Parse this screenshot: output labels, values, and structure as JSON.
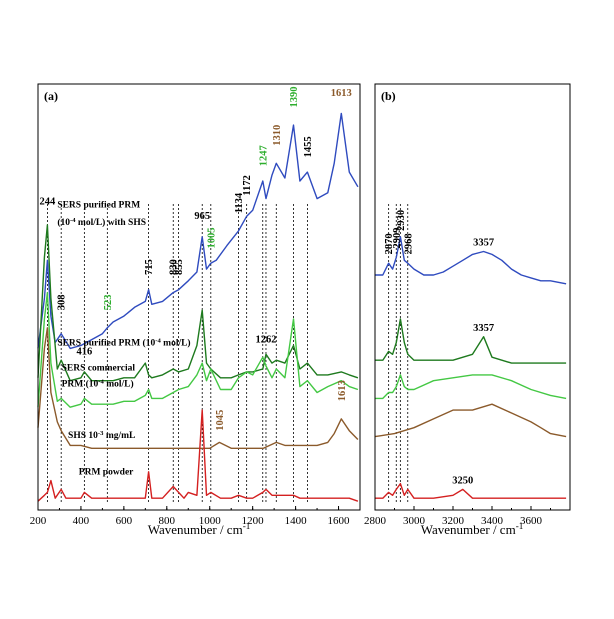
{
  "chart_data": [
    {
      "panel": "(a)",
      "type": "line",
      "xlabel": "Wavenumber / cm⁻¹",
      "xlim": [
        200,
        1700
      ],
      "xticks": [
        200,
        400,
        600,
        800,
        1000,
        1200,
        1400,
        1600
      ],
      "series": [
        {
          "key": "sers_purified_shs",
          "color": "#2f4bbf",
          "x": [
            200,
            230,
            244,
            260,
            280,
            308,
            350,
            400,
            450,
            500,
            523,
            550,
            600,
            650,
            700,
            715,
            730,
            780,
            830,
            855,
            900,
            940,
            965,
            985,
            1005,
            1030,
            1080,
            1134,
            1172,
            1200,
            1247,
            1262,
            1290,
            1310,
            1350,
            1390,
            1420,
            1455,
            1500,
            1550,
            1580,
            1613,
            1650,
            1690
          ],
          "y": [
            0.55,
            0.72,
            0.85,
            0.66,
            0.57,
            0.6,
            0.55,
            0.56,
            0.58,
            0.6,
            0.62,
            0.64,
            0.66,
            0.69,
            0.71,
            0.75,
            0.7,
            0.71,
            0.74,
            0.75,
            0.78,
            0.81,
            0.93,
            0.82,
            0.84,
            0.85,
            0.9,
            0.95,
            1.0,
            1.02,
            1.12,
            1.06,
            1.14,
            1.18,
            1.13,
            1.31,
            1.12,
            1.15,
            1.06,
            1.08,
            1.18,
            1.35,
            1.15,
            1.1
          ]
        },
        {
          "key": "sers_purified",
          "color": "#1e7a1e",
          "x": [
            200,
            230,
            244,
            260,
            290,
            308,
            350,
            400,
            416,
            450,
            500,
            550,
            600,
            650,
            700,
            715,
            730,
            780,
            830,
            855,
            900,
            940,
            965,
            985,
            1005,
            1050,
            1100,
            1134,
            1172,
            1200,
            1247,
            1262,
            1290,
            1310,
            1350,
            1390,
            1420,
            1455,
            1500,
            1550,
            1613,
            1650,
            1690
          ],
          "y": [
            0.45,
            0.86,
            0.97,
            0.72,
            0.48,
            0.51,
            0.44,
            0.45,
            0.47,
            0.44,
            0.44,
            0.44,
            0.45,
            0.45,
            0.5,
            0.46,
            0.45,
            0.46,
            0.48,
            0.47,
            0.48,
            0.56,
            0.68,
            0.5,
            0.48,
            0.45,
            0.45,
            0.46,
            0.47,
            0.47,
            0.48,
            0.53,
            0.5,
            0.51,
            0.5,
            0.56,
            0.48,
            0.5,
            0.46,
            0.46,
            0.47,
            0.46,
            0.45
          ]
        },
        {
          "key": "sers_commercial",
          "color": "#44c844",
          "x": [
            200,
            230,
            244,
            260,
            290,
            308,
            350,
            400,
            416,
            450,
            500,
            550,
            600,
            650,
            700,
            715,
            730,
            780,
            830,
            855,
            900,
            940,
            965,
            985,
            1005,
            1050,
            1100,
            1134,
            1172,
            1200,
            1247,
            1262,
            1290,
            1310,
            1350,
            1390,
            1420,
            1455,
            1500,
            1550,
            1613,
            1650,
            1690
          ],
          "y": [
            0.35,
            0.65,
            0.74,
            0.5,
            0.37,
            0.38,
            0.35,
            0.36,
            0.38,
            0.36,
            0.36,
            0.36,
            0.37,
            0.37,
            0.39,
            0.41,
            0.38,
            0.38,
            0.4,
            0.41,
            0.42,
            0.46,
            0.5,
            0.44,
            0.48,
            0.41,
            0.41,
            0.45,
            0.47,
            0.46,
            0.52,
            0.49,
            0.45,
            0.48,
            0.45,
            0.65,
            0.42,
            0.44,
            0.4,
            0.42,
            0.44,
            0.42,
            0.41
          ]
        },
        {
          "key": "shs",
          "color": "#8b5a2b",
          "x": [
            200,
            230,
            244,
            260,
            290,
            308,
            350,
            400,
            450,
            500,
            550,
            600,
            650,
            700,
            750,
            800,
            850,
            900,
            950,
            1000,
            1045,
            1100,
            1150,
            1200,
            1250,
            1310,
            1350,
            1400,
            1450,
            1500,
            1550,
            1580,
            1613,
            1650,
            1690
          ],
          "y": [
            0.28,
            0.55,
            0.62,
            0.4,
            0.3,
            0.27,
            0.22,
            0.22,
            0.21,
            0.21,
            0.21,
            0.21,
            0.21,
            0.21,
            0.21,
            0.21,
            0.21,
            0.21,
            0.21,
            0.21,
            0.23,
            0.21,
            0.21,
            0.21,
            0.21,
            0.23,
            0.22,
            0.22,
            0.22,
            0.22,
            0.23,
            0.26,
            0.31,
            0.27,
            0.24
          ]
        },
        {
          "key": "prm_powder",
          "color": "#d42020",
          "x": [
            200,
            230,
            244,
            260,
            280,
            308,
            330,
            400,
            416,
            450,
            500,
            600,
            650,
            700,
            715,
            730,
            780,
            830,
            855,
            880,
            900,
            940,
            965,
            985,
            1005,
            1050,
            1100,
            1134,
            1172,
            1200,
            1247,
            1262,
            1290,
            1310,
            1350,
            1390,
            1420,
            1455,
            1500,
            1550,
            1613,
            1650,
            1690
          ],
          "y": [
            0.03,
            0.05,
            0.06,
            0.1,
            0.04,
            0.07,
            0.04,
            0.04,
            0.06,
            0.04,
            0.04,
            0.04,
            0.04,
            0.04,
            0.13,
            0.04,
            0.04,
            0.08,
            0.06,
            0.04,
            0.06,
            0.05,
            0.34,
            0.05,
            0.06,
            0.04,
            0.04,
            0.05,
            0.04,
            0.04,
            0.06,
            0.07,
            0.05,
            0.05,
            0.05,
            0.05,
            0.04,
            0.04,
            0.04,
            0.04,
            0.04,
            0.04,
            0.03
          ]
        }
      ],
      "curve_labels": [
        {
          "text": "SERS  purified  PRM",
          "at": [
            290,
            1.03
          ]
        },
        {
          "text": "(10⁻⁴ mol/L) with SHS",
          "at": [
            290,
            0.97
          ]
        },
        {
          "text": "SERS purified PRM (10⁻⁴ mol/L)",
          "at": [
            290,
            0.56
          ]
        },
        {
          "text": "SERS commercial",
          "at": [
            310,
            0.475
          ]
        },
        {
          "text": "PRM (10⁻⁴ mol/L)",
          "at": [
            310,
            0.42
          ]
        },
        {
          "text": "SHS 10⁻³ mg/mL",
          "at": [
            340,
            0.245
          ]
        },
        {
          "text": "PRM powder",
          "at": [
            390,
            0.12
          ]
        }
      ],
      "peak_labels": [
        {
          "text": "244",
          "x": 244,
          "y": 1.04,
          "color": "#000000",
          "vertical": false
        },
        {
          "text": "308",
          "x": 308,
          "y": 0.68,
          "color": "#000000",
          "vertical": true
        },
        {
          "text": "523",
          "x": 523,
          "y": 0.68,
          "color": "#2eae2e",
          "vertical": true
        },
        {
          "text": "715",
          "x": 715,
          "y": 0.8,
          "color": "#000000",
          "vertical": true
        },
        {
          "text": "830",
          "x": 830,
          "y": 0.8,
          "color": "#000000",
          "vertical": true
        },
        {
          "text": "855",
          "x": 855,
          "y": 0.8,
          "color": "#000000",
          "vertical": true
        },
        {
          "text": "965",
          "x": 965,
          "y": 0.99,
          "color": "#000000",
          "vertical": false
        },
        {
          "text": "1005",
          "x": 1005,
          "y": 0.89,
          "color": "#2eae2e",
          "vertical": true
        },
        {
          "text": "1134",
          "x": 1134,
          "y": 1.01,
          "color": "#000000",
          "vertical": true
        },
        {
          "text": "1172",
          "x": 1172,
          "y": 1.07,
          "color": "#000000",
          "vertical": true
        },
        {
          "text": "1247",
          "x": 1247,
          "y": 1.17,
          "color": "#2eae2e",
          "vertical": true
        },
        {
          "text": "1310",
          "x": 1310,
          "y": 1.24,
          "color": "#8b5a2b",
          "vertical": true
        },
        {
          "text": "1390",
          "x": 1390,
          "y": 1.37,
          "color": "#2eae2e",
          "vertical": true
        },
        {
          "text": "1455",
          "x": 1455,
          "y": 1.2,
          "color": "#000000",
          "vertical": true
        },
        {
          "text": "1613",
          "x": 1613,
          "y": 1.41,
          "color": "#8b5a2b",
          "vertical": false
        },
        {
          "text": "416",
          "x": 416,
          "y": 0.53,
          "color": "#000000",
          "vertical": false
        },
        {
          "text": "1262",
          "x": 1262,
          "y": 0.57,
          "color": "#000000",
          "vertical": false
        },
        {
          "text": "1045",
          "x": 1045,
          "y": 0.27,
          "color": "#8b5a2b",
          "vertical": true
        },
        {
          "text": "1613",
          "x": 1613,
          "y": 0.37,
          "color": "#8b5a2b",
          "vertical": true
        }
      ],
      "dashed_lines": [
        244,
        308,
        416,
        523,
        715,
        830,
        855,
        965,
        1005,
        1134,
        1172,
        1247,
        1262,
        1310,
        1390,
        1455
      ]
    },
    {
      "panel": "(b)",
      "type": "line",
      "xlabel": "Wavenumber / cm⁻¹",
      "xlim": [
        2800,
        3800
      ],
      "xticks": [
        2800,
        3000,
        3200,
        3400,
        3600
      ],
      "series": [
        {
          "key": "sers_purified_shs",
          "color": "#2f4bbf",
          "x": [
            2800,
            2840,
            2870,
            2890,
            2909,
            2930,
            2950,
            2968,
            3000,
            3050,
            3100,
            3150,
            3200,
            3250,
            3300,
            3357,
            3400,
            3450,
            3500,
            3550,
            3600,
            3650,
            3700,
            3780
          ],
          "y": [
            0.8,
            0.8,
            0.84,
            0.82,
            0.86,
            0.93,
            0.85,
            0.84,
            0.82,
            0.8,
            0.8,
            0.81,
            0.83,
            0.85,
            0.87,
            0.88,
            0.87,
            0.85,
            0.82,
            0.8,
            0.79,
            0.78,
            0.78,
            0.77
          ]
        },
        {
          "key": "sers_purified",
          "color": "#1e7a1e",
          "x": [
            2800,
            2840,
            2870,
            2890,
            2909,
            2930,
            2950,
            2968,
            3000,
            3100,
            3200,
            3300,
            3357,
            3400,
            3500,
            3600,
            3700,
            3780
          ],
          "y": [
            0.51,
            0.51,
            0.54,
            0.53,
            0.57,
            0.65,
            0.57,
            0.53,
            0.51,
            0.51,
            0.51,
            0.53,
            0.59,
            0.52,
            0.5,
            0.5,
            0.5,
            0.5
          ]
        },
        {
          "key": "sers_commercial",
          "color": "#44c844",
          "x": [
            2800,
            2840,
            2870,
            2890,
            2909,
            2930,
            2950,
            2968,
            3000,
            3100,
            3200,
            3300,
            3400,
            3500,
            3600,
            3700,
            3780
          ],
          "y": [
            0.38,
            0.38,
            0.4,
            0.4,
            0.42,
            0.46,
            0.42,
            0.41,
            0.41,
            0.44,
            0.45,
            0.46,
            0.46,
            0.44,
            0.41,
            0.39,
            0.38
          ]
        },
        {
          "key": "shs",
          "color": "#8b5a2b",
          "x": [
            2800,
            2900,
            3000,
            3100,
            3200,
            3300,
            3400,
            3500,
            3600,
            3650,
            3700,
            3780
          ],
          "y": [
            0.25,
            0.26,
            0.28,
            0.31,
            0.34,
            0.34,
            0.36,
            0.33,
            0.3,
            0.28,
            0.26,
            0.25
          ]
        },
        {
          "key": "prm_powder",
          "color": "#d42020",
          "x": [
            2800,
            2840,
            2870,
            2890,
            2909,
            2930,
            2950,
            2968,
            3000,
            3100,
            3200,
            3250,
            3300,
            3400,
            3500,
            3600,
            3700,
            3780
          ],
          "y": [
            0.04,
            0.04,
            0.06,
            0.05,
            0.07,
            0.09,
            0.05,
            0.07,
            0.04,
            0.04,
            0.05,
            0.07,
            0.04,
            0.04,
            0.04,
            0.04,
            0.04,
            0.04
          ]
        }
      ],
      "peak_labels": [
        {
          "text": "2870",
          "x": 2870,
          "y": 0.87,
          "color": "#000000",
          "vertical": true
        },
        {
          "text": "2909",
          "x": 2909,
          "y": 0.89,
          "color": "#000000",
          "vertical": true
        },
        {
          "text": "2930",
          "x": 2930,
          "y": 0.95,
          "color": "#000000",
          "vertical": true
        },
        {
          "text": "2968",
          "x": 2968,
          "y": 0.87,
          "color": "#000000",
          "vertical": true
        },
        {
          "text": "3357",
          "x": 3357,
          "y": 0.9,
          "color": "#000000",
          "vertical": false
        },
        {
          "text": "3357",
          "x": 3357,
          "y": 0.61,
          "color": "#000000",
          "vertical": false
        },
        {
          "text": "3250",
          "x": 3250,
          "y": 0.09,
          "color": "#000000",
          "vertical": false
        }
      ],
      "dashed_lines": [
        2870,
        2909,
        2930,
        2968
      ]
    }
  ]
}
